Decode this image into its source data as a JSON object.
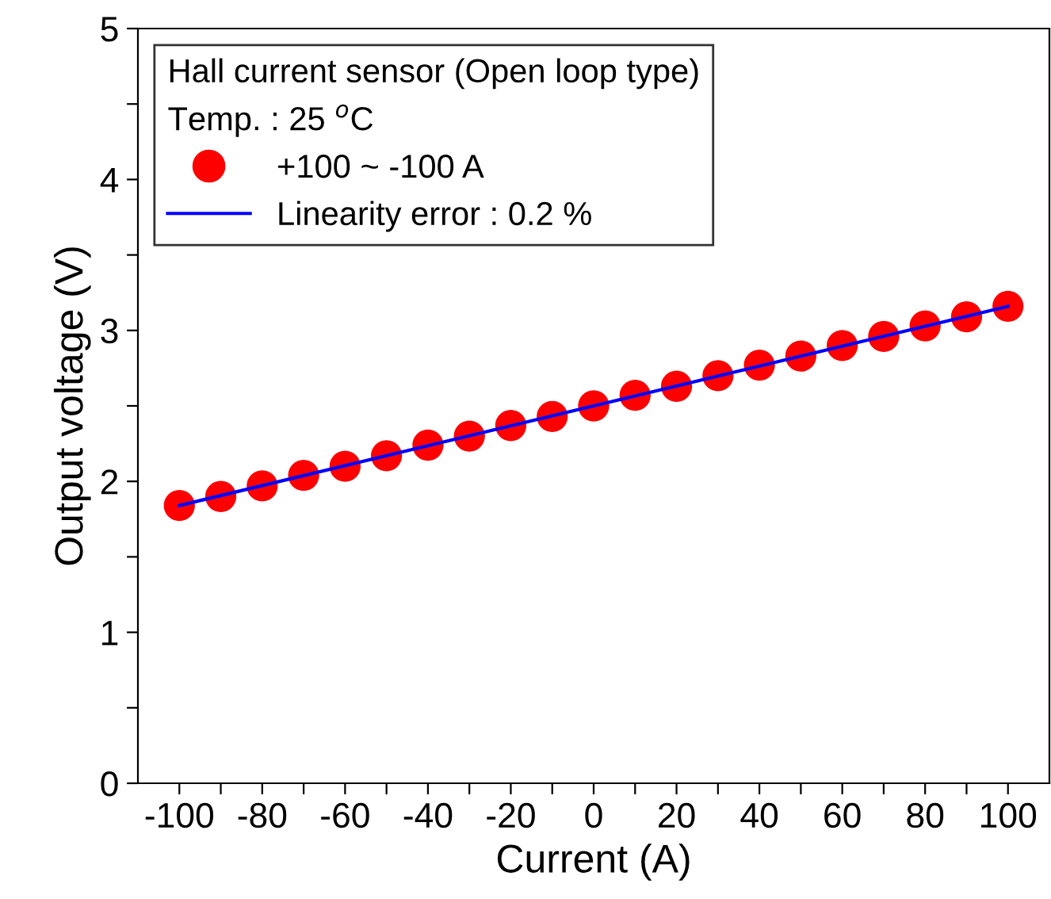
{
  "chart_data": {
    "type": "scatter",
    "xlabel": "Current (A)",
    "ylabel": "Output voltage (V)",
    "legend_title": "Hall current sensor (Open loop type)\nTemp. : 25 $^{o}$C",
    "x": [
      -100,
      -90,
      -80,
      -70,
      -60,
      -50,
      -40,
      -30,
      -20,
      -10,
      0,
      10,
      20,
      30,
      40,
      50,
      60,
      70,
      80,
      90,
      100
    ],
    "series": [
      {
        "name": "+100 ~ -100 A",
        "color": "#ff0000",
        "marker": "circle",
        "values": [
          1.84,
          1.9,
          1.97,
          2.04,
          2.1,
          2.17,
          2.24,
          2.3,
          2.37,
          2.43,
          2.5,
          2.57,
          2.63,
          2.7,
          2.77,
          2.83,
          2.9,
          2.96,
          3.03,
          3.09,
          3.16
        ]
      },
      {
        "name": "Linearity error : 0.2 %",
        "type": "line",
        "color": "#0000ff",
        "line_style": "solid",
        "x": [
          -100,
          100
        ],
        "values": [
          1.84,
          3.16
        ]
      }
    ],
    "xlim": [
      -110,
      110
    ],
    "xticks": [
      -100,
      {
        "value": -90,
        "label": null
      },
      -80,
      {
        "value": -70,
        "label": null
      },
      -60,
      {
        "value": -50,
        "label": null
      },
      -40,
      {
        "value": -30,
        "label": null
      },
      -20,
      {
        "value": -10,
        "label": null
      },
      0,
      {
        "value": 10,
        "label": null
      },
      20,
      {
        "value": 30,
        "label": null
      },
      40,
      {
        "value": 50,
        "label": null
      },
      60,
      {
        "value": 70,
        "label": null
      },
      80,
      {
        "value": 90,
        "label": null
      },
      100
    ],
    "ylim": [
      0,
      5
    ],
    "yticks": [
      0,
      {
        "value": 0.5,
        "label": null
      },
      1,
      {
        "value": 1.5,
        "label": null
      },
      2,
      {
        "value": 2.5,
        "label": null
      },
      3,
      {
        "value": 3.5,
        "label": null
      },
      4,
      {
        "value": 4.5,
        "label": null
      },
      5
    ],
    "grid": false,
    "legend": "top left"
  }
}
